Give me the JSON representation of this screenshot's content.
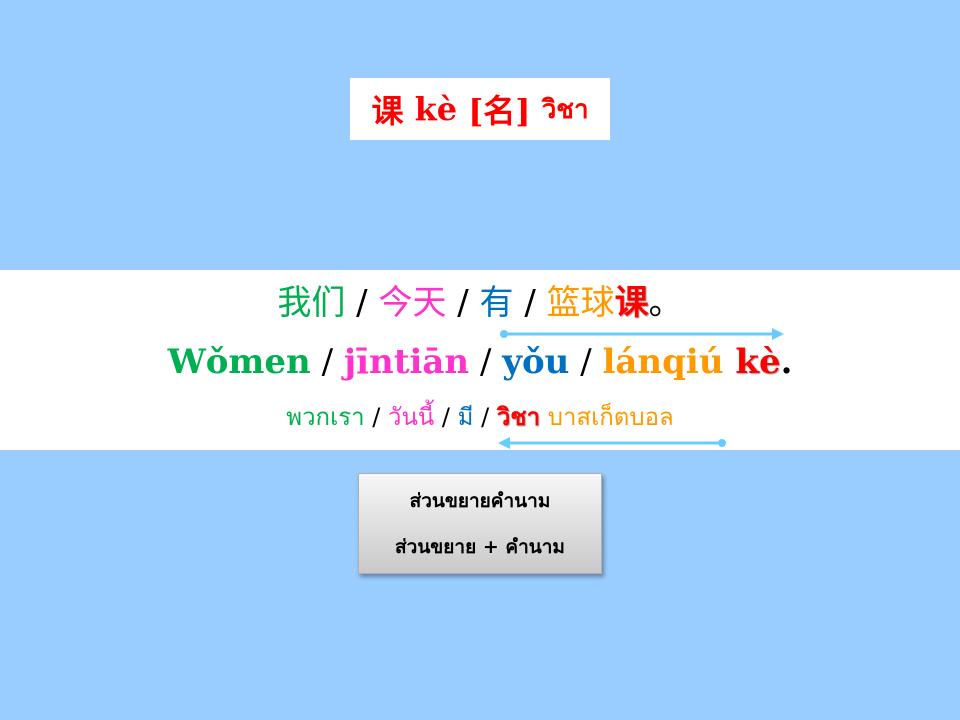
{
  "title": {
    "hanzi": "课",
    "pinyin": "kè",
    "pos": "[名]",
    "thai": "วิชา"
  },
  "sentence": {
    "chinese": {
      "w1": "我们",
      "s1": " / ",
      "w2": "今天",
      "s2": " / ",
      "w3": "有",
      "s3": " / ",
      "w4": "篮球",
      "w5": "课",
      "end": "。"
    },
    "pinyin": {
      "w1": "Wǒmen",
      "s1": " / ",
      "w2": "jīntiān",
      "s2": " / ",
      "w3": "yǒu",
      "s3": " / ",
      "w4": "lánqiú",
      "w5": "kè",
      "end": "."
    },
    "thai": {
      "w1": "พวกเรา",
      "s1": " / ",
      "w2": "วันนี้",
      "s2": " / ",
      "w3": "มี",
      "s3": " / ",
      "w4": "วิชา",
      "w5": "บาสเก็ตบอล"
    }
  },
  "note": {
    "line1": "ส่วนขยายคำนาม",
    "line2": "ส่วนขยาย + คำนาม"
  },
  "colors": {
    "background": "#99ccff",
    "green": "#00b050",
    "magenta": "#ff33cc",
    "blue": "#0070c0",
    "orange": "#ff9900",
    "red": "#ff0000",
    "arrow": "#66ccff"
  }
}
